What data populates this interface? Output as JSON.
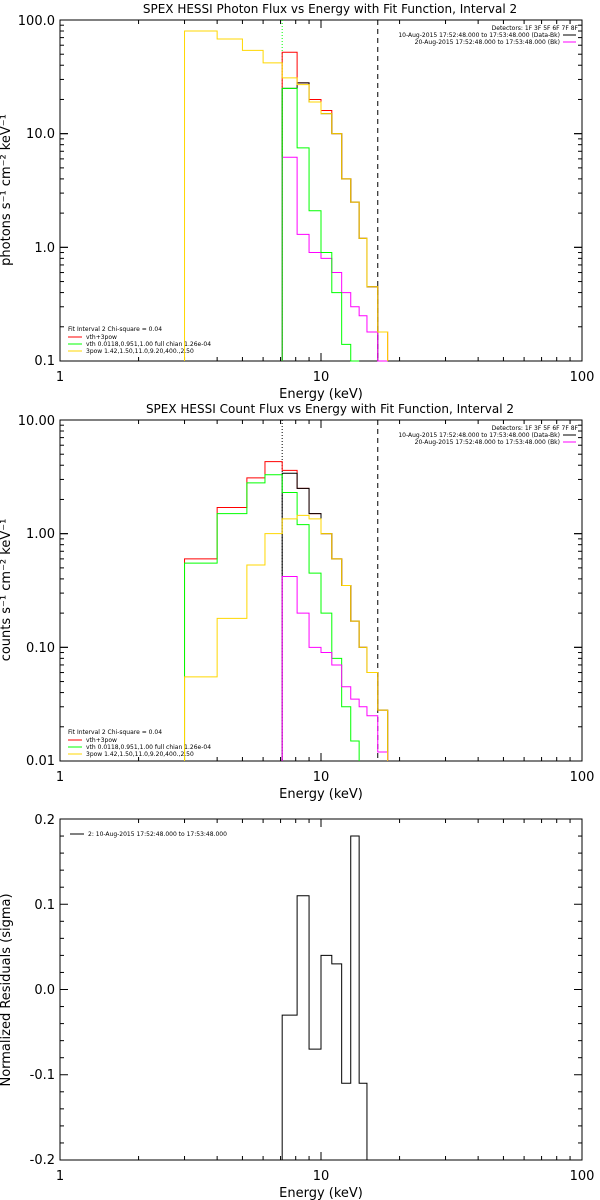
{
  "chart_data": [
    {
      "type": "line",
      "title": "SPEX HESSI Photon Flux vs Energy with Fit Function, Interval 2",
      "xlabel": "Energy (keV)",
      "ylabel": "photons s⁻¹ cm⁻² keV⁻¹",
      "xscale": "log",
      "yscale": "log",
      "xlim": [
        1,
        100
      ],
      "ylim": [
        0.1,
        100
      ],
      "xticks": [
        "1",
        "10",
        "100"
      ],
      "yticks": [
        "0.1",
        "1.0",
        "10.0",
        "100.0"
      ],
      "vlines": [
        {
          "x": 7.1,
          "style": "dotted",
          "color": "#00ff00"
        },
        {
          "x": 16.5,
          "style": "dashed",
          "color": "#000000"
        }
      ],
      "header_lines": [
        "Detectors: 1F 3F 5F 6F 7F 8F",
        "10-Aug-2015 17:52:48.000 to 17:53:48.000 (Data-Bk)",
        "20-Aug-2015 17:52:48.000 to 17:53:48.000 (Bk)"
      ],
      "fit_legend": [
        "Fit Interval 2  Chi-square = 0.04",
        "vth+3pow",
        "vth 0.0118,0.951,1.00  full chian 1.26e-04",
        "3pow 1.42,1.50,11.0,9.20,400.,2.50"
      ],
      "edges": [
        3.0,
        4.0,
        5.0,
        6.0,
        7.1,
        8.1,
        9.0,
        10.0,
        11.0,
        12.0,
        13.0,
        14.0,
        15.0,
        16.5,
        18.0
      ],
      "series": [
        {
          "color": "#ff0000",
          "values": [
            null,
            null,
            null,
            null,
            52,
            28,
            20,
            16,
            10,
            4,
            2.5,
            1.2,
            0.45,
            0.18
          ]
        },
        {
          "color": "#000000",
          "values": [
            null,
            null,
            null,
            null,
            25,
            28,
            19,
            15,
            10,
            4,
            2.5,
            1.2,
            0.45,
            null
          ]
        },
        {
          "color": "#ff00ff",
          "values": [
            null,
            null,
            null,
            null,
            6.2,
            1.3,
            0.9,
            0.8,
            0.6,
            0.4,
            0.3,
            0.25,
            0.18,
            0.1
          ]
        },
        {
          "color": "#00ff00",
          "values": [
            null,
            null,
            null,
            null,
            25,
            7.5,
            2.1,
            0.9,
            0.4,
            0.14,
            0.1,
            null,
            null,
            null
          ]
        },
        {
          "color": "#ffd700",
          "values": [
            80,
            68,
            54,
            42,
            31,
            27,
            19,
            15,
            10,
            4,
            2.5,
            1.2,
            0.45,
            0.18
          ]
        }
      ]
    },
    {
      "type": "line",
      "title": "SPEX HESSI Count Flux vs Energy with Fit Function, Interval 2",
      "xlabel": "Energy (keV)",
      "ylabel": "counts s⁻¹ cm⁻² keV⁻¹",
      "xscale": "log",
      "yscale": "log",
      "xlim": [
        1,
        100
      ],
      "ylim": [
        0.01,
        10
      ],
      "xticks": [
        "1",
        "10",
        "100"
      ],
      "yticks": [
        "0.01",
        "0.10",
        "1.00",
        "10.00"
      ],
      "vlines": [
        {
          "x": 7.1,
          "style": "dotted",
          "color": "#000000"
        },
        {
          "x": 16.5,
          "style": "dashed",
          "color": "#000000"
        }
      ],
      "header_lines": [
        "Detectors: 1F 3F 5F 6F 7F 8F",
        "10-Aug-2015 17:52:48.000 to 17:53:48.000 (Data-Bk)",
        "20-Aug-2015 17:52:48.000 to 17:53:48.000 (Bk)"
      ],
      "fit_legend": [
        "Fit Interval 2  Chi-square = 0.04",
        "vth+3pow",
        "vth 0.0118,0.951,1.00  full chian 1.26e-04",
        "3pow 1.42,1.50,11.0,9.20,400.,2.50"
      ],
      "edges": [
        3.0,
        4.0,
        5.2,
        6.1,
        7.1,
        8.1,
        9.0,
        10.0,
        11.0,
        12.0,
        13.0,
        14.0,
        15.0,
        16.5,
        18.0
      ],
      "series": [
        {
          "color": "#ff0000",
          "values": [
            0.6,
            1.7,
            3.1,
            4.3,
            3.6,
            2.5,
            1.5,
            1.0,
            0.6,
            0.35,
            0.17,
            0.1,
            0.06,
            0.028
          ]
        },
        {
          "color": "#000000",
          "values": [
            null,
            null,
            null,
            null,
            3.4,
            2.5,
            1.5,
            1.0,
            0.6,
            0.35,
            0.17,
            0.1,
            0.06,
            0.028
          ]
        },
        {
          "color": "#00ff00",
          "values": [
            0.55,
            1.5,
            2.8,
            3.3,
            2.3,
            1.2,
            0.45,
            0.2,
            0.08,
            0.03,
            0.015,
            null,
            null,
            null
          ]
        },
        {
          "color": "#ff00ff",
          "values": [
            null,
            null,
            null,
            null,
            0.42,
            0.2,
            0.1,
            0.09,
            0.07,
            0.045,
            0.035,
            0.03,
            0.025,
            0.012
          ]
        },
        {
          "color": "#ffd700",
          "values": [
            0.055,
            0.18,
            0.53,
            1.0,
            1.35,
            1.45,
            1.35,
            1.0,
            0.6,
            0.35,
            0.17,
            0.1,
            0.06,
            0.028
          ]
        }
      ]
    },
    {
      "type": "line",
      "title": "",
      "xlabel": "Energy (keV)",
      "ylabel": "Normalized Residuals (sigma)",
      "xscale": "log",
      "yscale": "linear",
      "xlim": [
        1,
        100
      ],
      "ylim": [
        -0.2,
        0.2
      ],
      "xticks": [
        "1",
        "10",
        "100"
      ],
      "yticks": [
        "-0.2",
        "-0.1",
        "0.0",
        "0.1",
        "0.2"
      ],
      "legend": "2: 10-Aug-2015 17:52:48.000 to 17:53:48.000",
      "edges": [
        7.1,
        8.1,
        9.0,
        10.0,
        11.0,
        12.0,
        13.0,
        14.0,
        15.0,
        16.5
      ],
      "series": [
        {
          "color": "#000000",
          "values": [
            -0.03,
            0.11,
            -0.07,
            0.04,
            0.03,
            -0.11,
            0.18,
            -0.11,
            null
          ]
        }
      ]
    }
  ]
}
